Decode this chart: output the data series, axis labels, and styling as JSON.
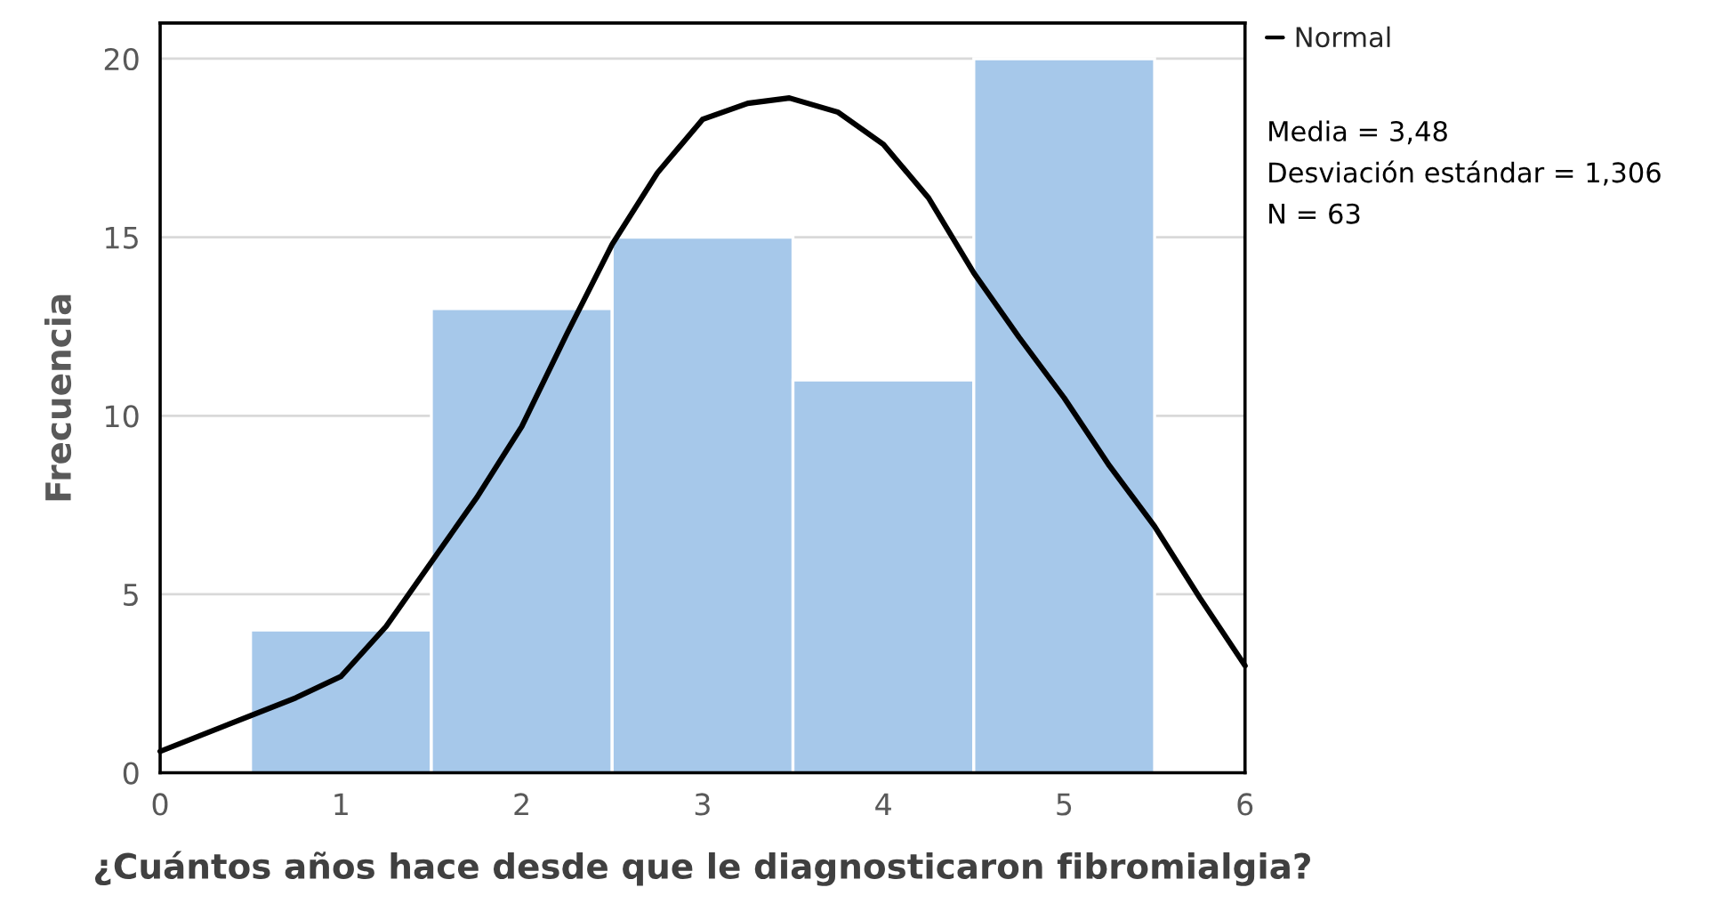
{
  "chart_data": {
    "type": "histogram",
    "xlabel": "¿Cuántos años hace desde que le diagnosticaron fibromialgia?",
    "ylabel": "Frecuencia",
    "bins": [
      0.5,
      1.5,
      2.5,
      3.5,
      4.5,
      5.5
    ],
    "values": [
      4,
      13,
      15,
      11,
      20
    ],
    "color": "#a6c8ea",
    "series": [
      {
        "type": "line",
        "name": "Normal",
        "color": "#000000",
        "x": [
          0,
          0.5,
          0.75,
          1,
          1.25,
          1.5,
          1.75,
          2,
          2.25,
          2.5,
          2.75,
          3,
          3.25,
          3.48,
          3.75,
          4,
          4.25,
          4.5,
          4.75,
          5,
          5.25,
          5.5,
          5.75,
          6
        ],
        "values": [
          0.6,
          1.6,
          2.1,
          2.7,
          4.1,
          5.9,
          7.7,
          9.7,
          12.3,
          14.8,
          16.8,
          18.3,
          18.75,
          18.9,
          18.5,
          17.6,
          16.1,
          14.0,
          12.2,
          10.5,
          8.6,
          6.9,
          4.9,
          3.0
        ]
      }
    ],
    "xlim": [
      0,
      6
    ],
    "xticks": [
      0,
      1,
      2,
      3,
      4,
      5,
      6
    ],
    "ylim": [
      0,
      21
    ],
    "yticks": [
      0,
      5,
      10,
      15,
      20
    ],
    "grid": "y",
    "legend": "top right",
    "annotations": [
      "Media = 3,48",
      "Desviación estándar = 1,306",
      "N = 63"
    ]
  }
}
